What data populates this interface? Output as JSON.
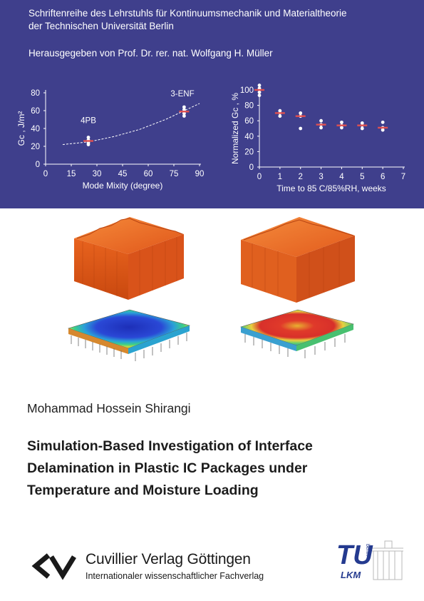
{
  "banner": {
    "series_line1": "Schriftenreihe des Lehrstuhls für Kontinuumsmechanik und Materialtheorie",
    "series_line2": "der Technischen Universität Berlin",
    "editor_line": "Herausgegeben von Prof. Dr. rer. nat. Wolfgang H. Müller",
    "background_color": "#3f3f8c"
  },
  "chart_data": [
    {
      "type": "scatter",
      "xlabel": "Mode Mixity (degree)",
      "ylabel": "Gc , J/m²",
      "xlim": [
        0,
        90
      ],
      "ylim": [
        0,
        80
      ],
      "x_ticks": [
        "0",
        "15",
        "30",
        "45",
        "60",
        "75",
        "90"
      ],
      "y_ticks": [
        "0",
        "20",
        "40",
        "60",
        "80"
      ],
      "annotations": [
        "4PB",
        "3-ENF"
      ],
      "points": [
        {
          "x": 25,
          "y": 30
        },
        {
          "x": 25,
          "y": 27
        },
        {
          "x": 25,
          "y": 24
        },
        {
          "x": 25,
          "y": 22
        },
        {
          "x": 81,
          "y": 64
        },
        {
          "x": 81,
          "y": 61
        },
        {
          "x": 81,
          "y": 57
        },
        {
          "x": 81,
          "y": 54
        }
      ],
      "means": [
        {
          "x": 25,
          "y": 26
        },
        {
          "x": 81,
          "y": 59
        }
      ],
      "fit_curve": {
        "x": [
          10,
          25,
          40,
          55,
          70,
          90
        ],
        "y": [
          22,
          25,
          31,
          39,
          50,
          68
        ]
      },
      "grid": false
    },
    {
      "type": "scatter",
      "xlabel": "Time to 85 C/85%RH, weeks",
      "ylabel": "Normalized Gc , %",
      "xlim": [
        0,
        7
      ],
      "ylim": [
        0,
        100
      ],
      "x_ticks": [
        "0",
        "1",
        "2",
        "3",
        "4",
        "5",
        "6",
        "7"
      ],
      "y_ticks": [
        "0",
        "20",
        "40",
        "60",
        "80",
        "100"
      ],
      "points": [
        {
          "x": 0,
          "y": 106
        },
        {
          "x": 0,
          "y": 102
        },
        {
          "x": 0,
          "y": 97
        },
        {
          "x": 0,
          "y": 93
        },
        {
          "x": 1,
          "y": 73
        },
        {
          "x": 1,
          "y": 70
        },
        {
          "x": 1,
          "y": 66
        },
        {
          "x": 2,
          "y": 70
        },
        {
          "x": 2,
          "y": 66
        },
        {
          "x": 2,
          "y": 50
        },
        {
          "x": 3,
          "y": 60
        },
        {
          "x": 3,
          "y": 55
        },
        {
          "x": 3,
          "y": 51
        },
        {
          "x": 4,
          "y": 58
        },
        {
          "x": 4,
          "y": 54
        },
        {
          "x": 4,
          "y": 51
        },
        {
          "x": 5,
          "y": 57
        },
        {
          "x": 5,
          "y": 54
        },
        {
          "x": 5,
          "y": 50
        },
        {
          "x": 6,
          "y": 58
        },
        {
          "x": 6,
          "y": 51
        },
        {
          "x": 6,
          "y": 48
        }
      ],
      "means": [
        {
          "x": 0,
          "y": 100
        },
        {
          "x": 1,
          "y": 70
        },
        {
          "x": 2,
          "y": 66
        },
        {
          "x": 3,
          "y": 55
        },
        {
          "x": 4,
          "y": 54
        },
        {
          "x": 5,
          "y": 54
        },
        {
          "x": 6,
          "y": 51
        }
      ],
      "grid": false
    }
  ],
  "colors": {
    "mean_marker": "#e05050",
    "point_marker": "#ffffff",
    "package_orange": "#ef6a1f",
    "package_dark": "#a8400f"
  },
  "author": "Mohammad Hossein Shirangi",
  "title_lines": [
    "Simulation-Based Investigation of Interface",
    "Delamination in Plastic IC Packages under",
    "Temperature and Moisture Loading"
  ],
  "publisher": {
    "name": "Cuvillier Verlag Göttingen",
    "tagline": "Internationaler wissenschaftlicher Fachverlag"
  },
  "lkm_logo": {
    "letters": "TU",
    "small_text": "berlin",
    "abbr": "LKM"
  }
}
